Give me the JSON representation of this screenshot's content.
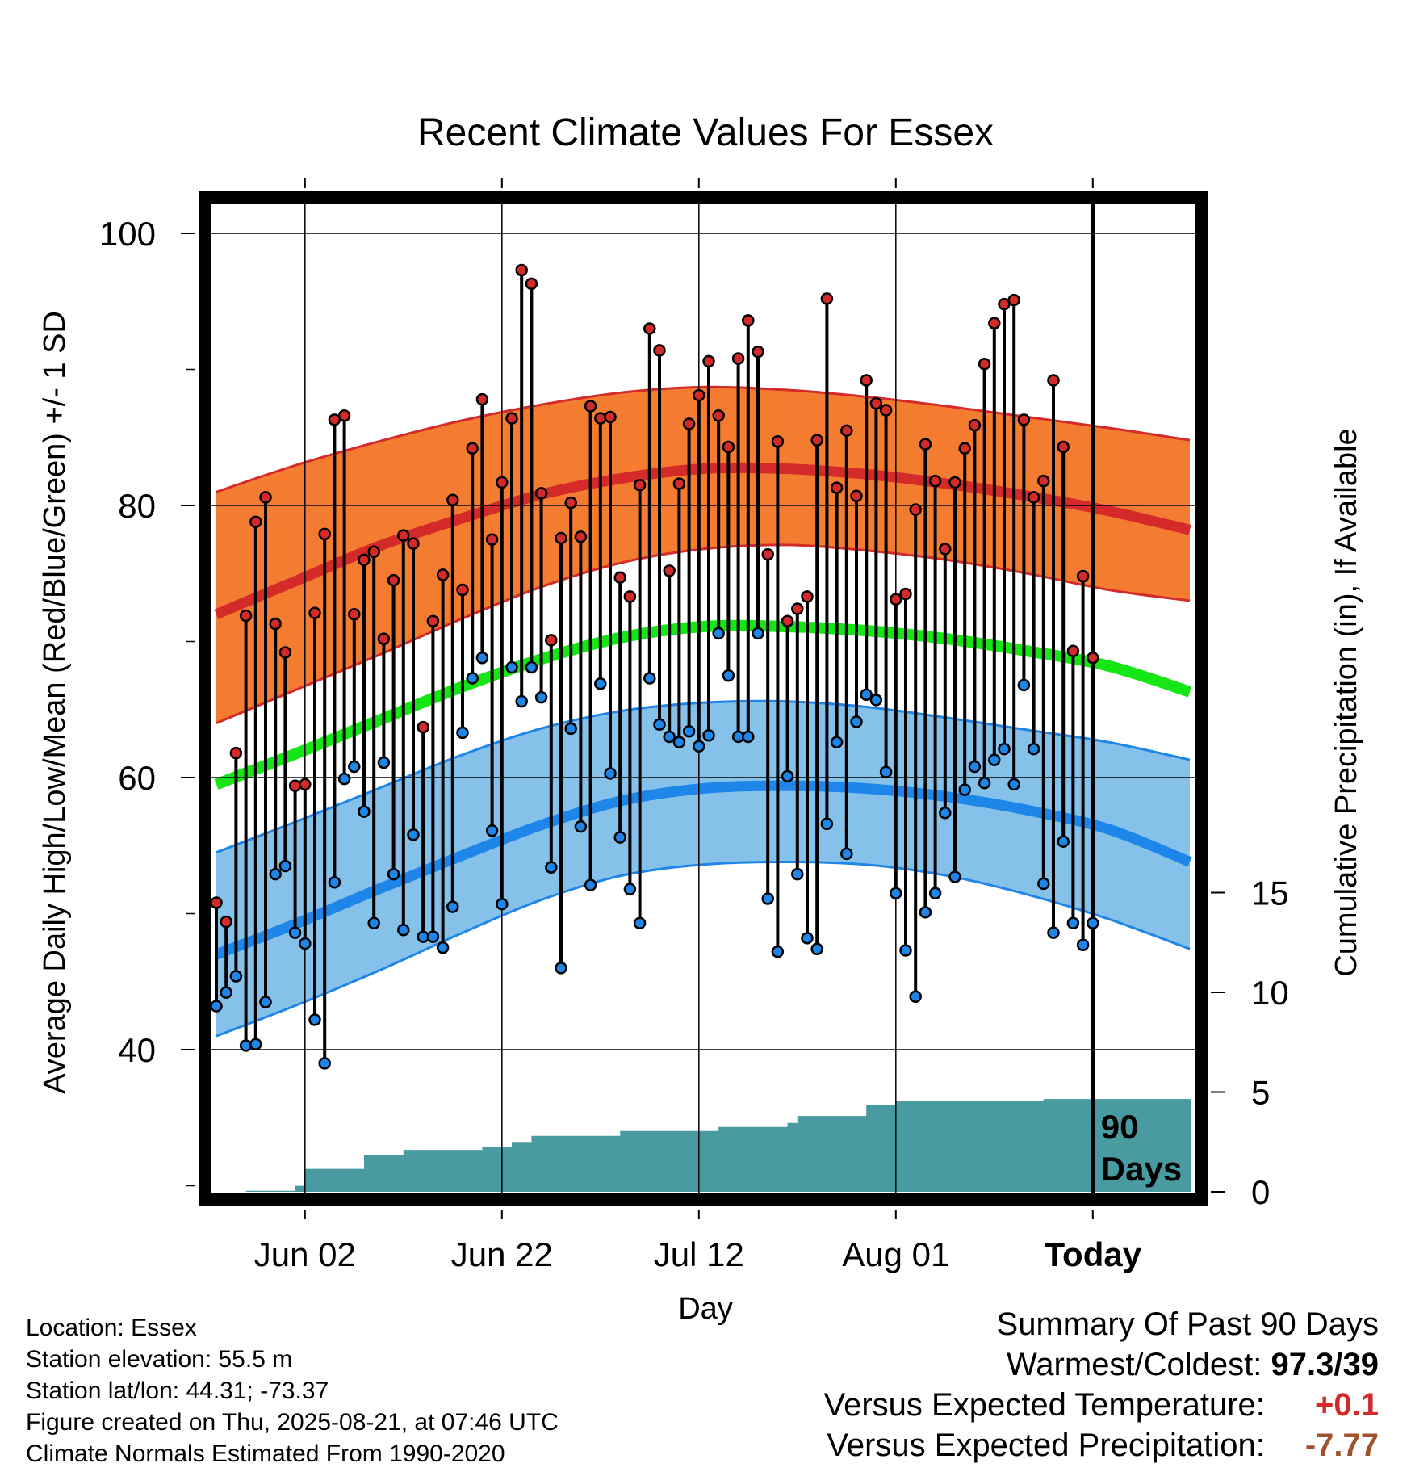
{
  "chart_data": {
    "type": "line",
    "title": "Recent Climate Values For Essex",
    "xlabel": "Day",
    "ylabel": "Average Daily High/Low/Mean (Red/Blue/Green) +/- 1 SD",
    "y2label": "Cumulative Precipitation (in), If Available",
    "x_tick_labels": [
      "Jun 02",
      "Jun 22",
      "Jul 12",
      "Aug 01",
      "Today"
    ],
    "y_ticks": [
      40,
      60,
      80,
      100
    ],
    "y2_ticks": [
      0,
      5,
      10,
      15
    ],
    "ylim": [
      29.5,
      103
    ],
    "today_annotation": "90 Days",
    "days_shown": 90,
    "grid": true,
    "colors": {
      "high": "#d42a2a",
      "high_band": "#f47c30",
      "low": "#1e86e8",
      "low_band": "#86c1ea",
      "mean": "#16e616",
      "precip": "#4a9aa2"
    },
    "normals": {
      "high_mean": [
        72,
        74.5,
        77,
        79,
        80.8,
        82,
        82.7,
        82.7,
        82.3,
        81.6,
        80.7,
        79.6,
        78.2
      ],
      "high_upper": [
        81,
        83,
        84.7,
        86.2,
        87.4,
        88.3,
        88.7,
        88.5,
        88,
        87.3,
        86.5,
        85.7,
        84.8
      ],
      "high_lower": [
        64,
        66.5,
        69,
        71.6,
        74,
        75.8,
        76.8,
        77.1,
        76.7,
        76,
        75,
        73.8,
        73
      ],
      "mean_normal": [
        59.5,
        61.8,
        64.2,
        66.6,
        68.7,
        70.3,
        71.1,
        71.1,
        70.8,
        70.2,
        69.3,
        68.2,
        66.3
      ],
      "low_mean": [
        47,
        49.3,
        51.8,
        54.2,
        56.5,
        58.3,
        59.2,
        59.4,
        59.2,
        58.6,
        57.6,
        56.2,
        53.8
      ],
      "low_upper": [
        54.5,
        56.8,
        59.2,
        61.6,
        63.6,
        64.9,
        65.5,
        65.6,
        65.2,
        64.4,
        63.5,
        62.6,
        61.3
      ],
      "low_lower": [
        41,
        43.3,
        45.8,
        48.5,
        51,
        52.8,
        53.6,
        53.8,
        53.6,
        52.8,
        51.4,
        49.6,
        47.4
      ]
    },
    "daily_high": [
      50.8,
      49.4,
      61.8,
      71.9,
      78.8,
      80.6,
      71.3,
      69.2,
      59.4,
      59.5,
      72.1,
      77.9,
      86.3,
      86.6,
      72,
      76,
      76.6,
      70.2,
      74.5,
      77.8,
      77.2,
      63.7,
      71.5,
      74.9,
      80.4,
      73.8,
      84.2,
      87.8,
      77.5,
      81.7,
      86.4,
      97.3,
      96.3,
      80.9,
      70.1,
      77.6,
      80.2,
      77.7,
      87.3,
      86.4,
      86.5,
      74.7,
      73.3,
      81.5,
      93,
      91.4,
      75.2,
      81.6,
      86,
      88.1,
      90.6,
      86.6,
      84.3,
      90.8,
      93.6,
      91.3,
      76.4,
      84.7,
      71.5,
      72.4,
      73.3,
      84.8,
      95.2,
      81.3,
      85.5,
      80.7,
      89.2,
      87.5,
      87,
      73.1,
      73.5,
      79.7,
      84.5,
      81.8,
      76.8,
      81.7,
      84.2,
      85.9,
      90.4,
      93.4,
      94.8,
      95.1,
      86.3,
      80.6,
      81.8,
      89.2,
      84.3,
      69.3,
      74.8,
      68.8
    ],
    "daily_low": [
      43.2,
      44.2,
      45.4,
      40.3,
      40.4,
      43.5,
      52.9,
      53.5,
      48.6,
      47.8,
      42.2,
      39,
      52.3,
      59.9,
      60.8,
      57.5,
      49.3,
      61.1,
      52.9,
      48.8,
      55.8,
      48.3,
      48.3,
      47.5,
      50.5,
      63.3,
      67.3,
      68.8,
      56.1,
      50.7,
      68.1,
      65.6,
      68.1,
      65.9,
      53.4,
      46,
      63.6,
      56.4,
      52.1,
      66.9,
      60.3,
      55.6,
      51.8,
      49.3,
      67.3,
      63.9,
      63,
      62.6,
      63.4,
      62.3,
      63.1,
      70.6,
      67.5,
      63,
      63,
      70.6,
      51.1,
      47.2,
      60.1,
      52.9,
      48.2,
      47.4,
      56.6,
      62.6,
      54.4,
      64.1,
      66.1,
      65.7,
      60.4,
      51.5,
      47.3,
      43.9,
      50.1,
      51.5,
      57.4,
      52.7,
      59.1,
      60.8,
      59.6,
      61.3,
      62.1,
      59.5,
      66.8,
      62.1,
      52.2,
      48.6,
      55.3,
      49.3,
      47.7,
      49.3
    ],
    "precip_cumulative": [
      [
        0,
        0
      ],
      [
        3,
        0.05
      ],
      [
        8,
        0.3
      ],
      [
        9,
        1.15
      ],
      [
        14,
        1.15
      ],
      [
        15,
        1.85
      ],
      [
        18,
        1.85
      ],
      [
        19,
        2.1
      ],
      [
        27,
        2.25
      ],
      [
        30,
        2.5
      ],
      [
        32,
        2.8
      ],
      [
        41,
        3.05
      ],
      [
        51,
        3.25
      ],
      [
        58,
        3.45
      ],
      [
        59,
        3.8
      ],
      [
        65,
        3.8
      ],
      [
        66,
        4.35
      ],
      [
        69,
        4.55
      ],
      [
        84,
        4.65
      ],
      [
        101,
        4.65
      ]
    ]
  },
  "footer": {
    "location": "Location: Essex",
    "elevation": "Station elevation: 55.5 m",
    "latlon": "Station lat/lon: 44.31; -73.37",
    "created": "Figure created on Thu, 2025-08-21, at 07:46 UTC",
    "normals": "Climate Normals Estimated From 1990-2020"
  },
  "summary": {
    "heading": "Summary Of Past 90 Days",
    "warm_cold_label": "Warmest/Coldest:",
    "warm_cold_value": "97.3/39",
    "temp_label": "Versus Expected Temperature:",
    "temp_value": "+0.1",
    "temp_color": "#d42a2a",
    "precip_label": "Versus Expected Precipitation:",
    "precip_value": "-7.77",
    "precip_color": "#a0522d"
  }
}
